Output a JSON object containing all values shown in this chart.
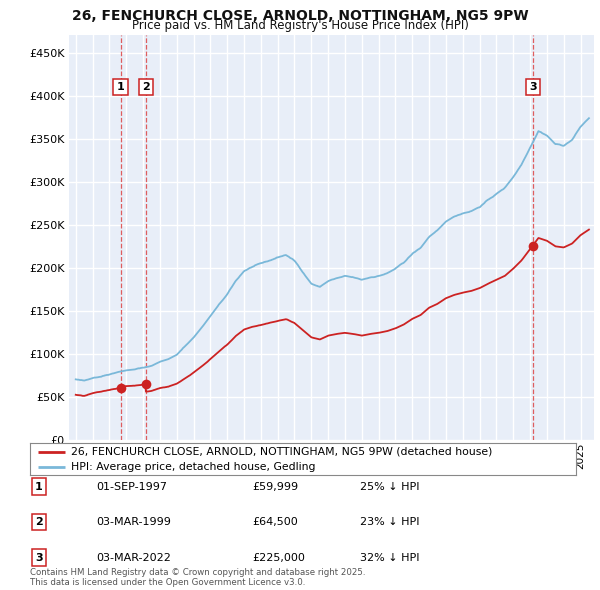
{
  "title_line1": "26, FENCHURCH CLOSE, ARNOLD, NOTTINGHAM, NG5 9PW",
  "title_line2": "Price paid vs. HM Land Registry's House Price Index (HPI)",
  "ylim": [
    0,
    470000
  ],
  "yticks": [
    0,
    50000,
    100000,
    150000,
    200000,
    250000,
    300000,
    350000,
    400000,
    450000
  ],
  "ytick_labels": [
    "£0",
    "£50K",
    "£100K",
    "£150K",
    "£200K",
    "£250K",
    "£300K",
    "£350K",
    "£400K",
    "£450K"
  ],
  "xlim_start": 1994.6,
  "xlim_end": 2025.8,
  "sale_dates": [
    1997.667,
    1999.167,
    2022.167
  ],
  "sale_prices": [
    59999,
    64500,
    225000
  ],
  "sale_labels": [
    "1",
    "2",
    "3"
  ],
  "hpi_color": "#7ab8d9",
  "sale_color": "#cc2222",
  "vline_color": "#dd4444",
  "background_color": "#e8eef8",
  "grid_color": "#ffffff",
  "legend_label_sale": "26, FENCHURCH CLOSE, ARNOLD, NOTTINGHAM, NG5 9PW (detached house)",
  "legend_label_hpi": "HPI: Average price, detached house, Gedling",
  "table_data": [
    [
      "1",
      "01-SEP-1997",
      "£59,999",
      "25% ↓ HPI"
    ],
    [
      "2",
      "03-MAR-1999",
      "£64,500",
      "23% ↓ HPI"
    ],
    [
      "3",
      "03-MAR-2022",
      "£225,000",
      "32% ↓ HPI"
    ]
  ],
  "footer_text": "Contains HM Land Registry data © Crown copyright and database right 2025.\nThis data is licensed under the Open Government Licence v3.0."
}
